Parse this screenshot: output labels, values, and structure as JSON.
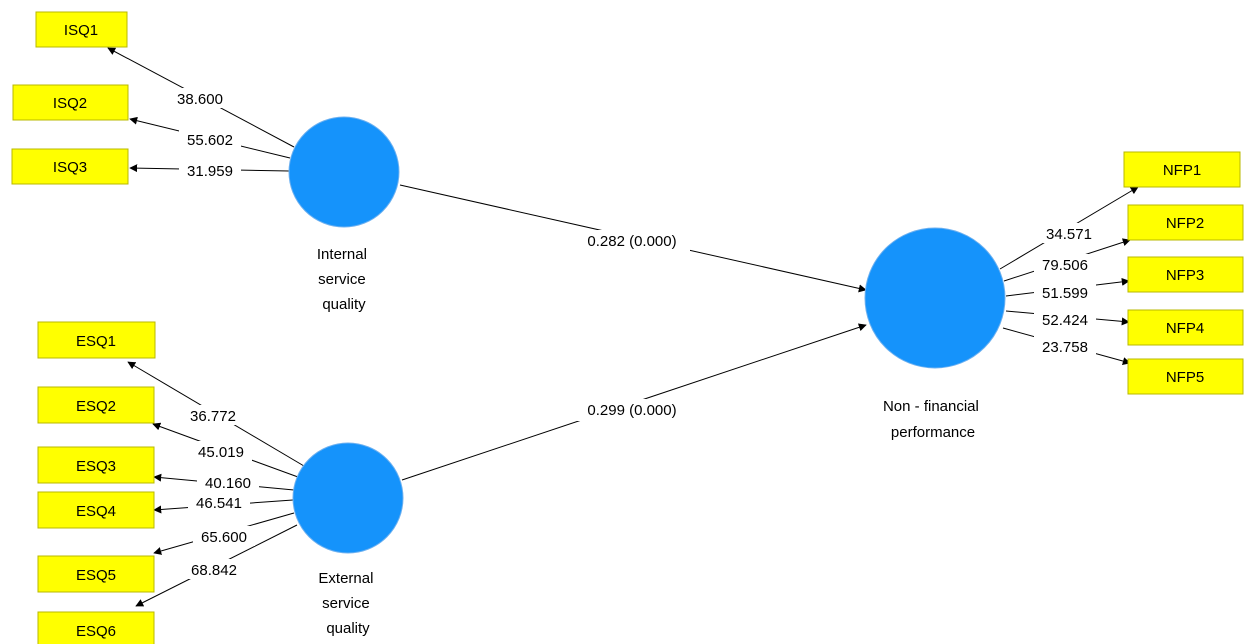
{
  "colors": {
    "indicator_fill": "#ffff00",
    "latent_fill": "#1593fb",
    "line": "#000000",
    "background": "#ffffff"
  },
  "latent_variables": {
    "isq": {
      "label_lines": [
        "Internal",
        "service",
        "quality"
      ]
    },
    "esq": {
      "label_lines": [
        "External",
        "service",
        "quality"
      ]
    },
    "nfp": {
      "label_lines": [
        "Non - financial",
        "performance"
      ]
    }
  },
  "indicators": {
    "isq": [
      {
        "label": "ISQ1",
        "weight": "38.600"
      },
      {
        "label": "ISQ2",
        "weight": "55.602"
      },
      {
        "label": "ISQ3",
        "weight": "31.959"
      }
    ],
    "esq": [
      {
        "label": "ESQ1",
        "weight": "36.772"
      },
      {
        "label": "ESQ2",
        "weight": "45.019"
      },
      {
        "label": "ESQ3",
        "weight": "40.160"
      },
      {
        "label": "ESQ4",
        "weight": "46.541"
      },
      {
        "label": "ESQ5",
        "weight": "65.600"
      },
      {
        "label": "ESQ6",
        "weight": "68.842"
      }
    ],
    "nfp": [
      {
        "label": "NFP1",
        "weight": "34.571"
      },
      {
        "label": "NFP2",
        "weight": "79.506"
      },
      {
        "label": "NFP3",
        "weight": "51.599"
      },
      {
        "label": "NFP4",
        "weight": "52.424"
      },
      {
        "label": "NFP5",
        "weight": "23.758"
      }
    ]
  },
  "paths": {
    "isq_nfp": "0.282 (0.000)",
    "esq_nfp": "0.299 (0.000)"
  }
}
